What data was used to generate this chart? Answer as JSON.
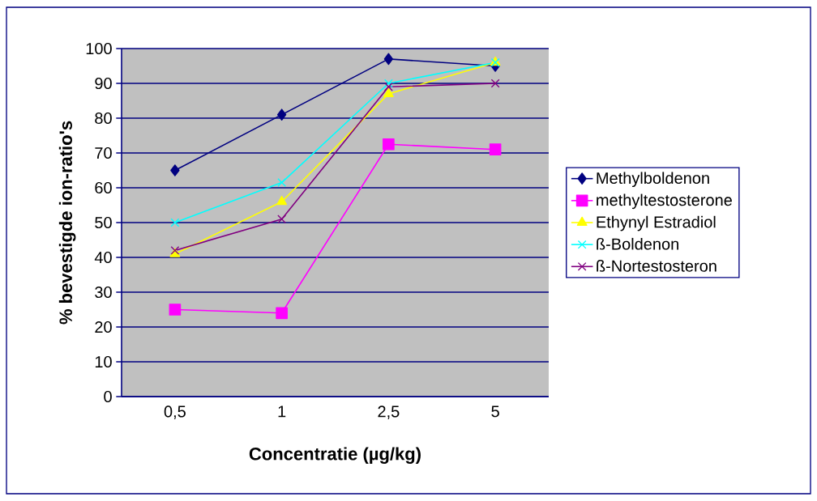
{
  "chart_data": {
    "type": "line",
    "xlabel": "Concentratie (µg/kg)",
    "ylabel": "% bevestigde ion-ratio's",
    "categories": [
      "0,5",
      "1",
      "2,5",
      "5"
    ],
    "series": [
      {
        "name": "Methylboldenon",
        "color": "#000080",
        "marker": "diamond",
        "values": [
          65,
          81,
          97,
          95
        ]
      },
      {
        "name": "methyltestosterone",
        "color": "#ff00ff",
        "marker": "square",
        "values": [
          25,
          24,
          72.5,
          71
        ]
      },
      {
        "name": "Ethynyl Estradiol",
        "color": "#ffff00",
        "marker": "triangle",
        "values": [
          41,
          56,
          87,
          96
        ]
      },
      {
        "name": "ß-Boldenon",
        "color": "#00ffff",
        "marker": "cross",
        "values": [
          50,
          61.5,
          90,
          96
        ]
      },
      {
        "name": "ß-Nortestosteron",
        "color": "#800080",
        "marker": "cross",
        "values": [
          42,
          51,
          89,
          90
        ]
      }
    ],
    "ylim": [
      0,
      100
    ],
    "yticks": [
      0,
      10,
      20,
      30,
      40,
      50,
      60,
      70,
      80,
      90,
      100
    ],
    "grid": "y",
    "legend": "right"
  }
}
